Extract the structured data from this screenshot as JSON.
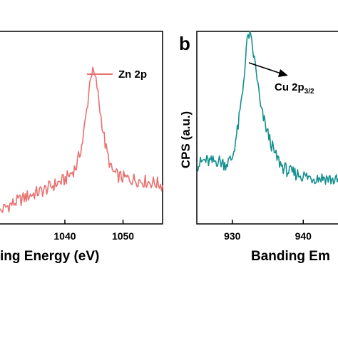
{
  "chart_data": [
    {
      "type": "line",
      "panel_label": "",
      "xlabel": "ing Energy (eV)",
      "ylabel": "",
      "xlim": [
        1028.6,
        1056.8
      ],
      "ylim": [
        0,
        1
      ],
      "xticks": [
        1040,
        1050
      ],
      "legend": {
        "label": "Zn 2p",
        "position": "top-right",
        "color": "#e8716f"
      },
      "series": [
        {
          "name": "Zn 2p",
          "color": "#e8716f",
          "x": [
            1028.6,
            1030,
            1032,
            1034,
            1036,
            1038,
            1040,
            1041,
            1042,
            1043,
            1043.8,
            1044.5,
            1045,
            1045.5,
            1046,
            1047,
            1048,
            1049,
            1050,
            1052,
            1054,
            1056,
            1056.8
          ],
          "y": [
            0.06,
            0.09,
            0.12,
            0.15,
            0.17,
            0.2,
            0.23,
            0.26,
            0.3,
            0.42,
            0.6,
            0.79,
            0.78,
            0.72,
            0.6,
            0.4,
            0.28,
            0.25,
            0.24,
            0.23,
            0.22,
            0.21,
            0.2
          ]
        }
      ]
    },
    {
      "type": "line",
      "panel_label": "b",
      "xlabel": "Banding Em",
      "ylabel": "CPS (a.u.)",
      "xlim": [
        925,
        945.3
      ],
      "ylim": [
        0,
        1
      ],
      "xticks": [
        930,
        940
      ],
      "annotation": {
        "text": "Cu 2p",
        "subscript": "3/2"
      },
      "series": [
        {
          "name": "",
          "color": "#14908f",
          "x": [
            925,
            926,
            927,
            928,
            929,
            930,
            930.8,
            931.5,
            932,
            932.3,
            932.6,
            933,
            933.5,
            934,
            935,
            936,
            937,
            938,
            939,
            940,
            941,
            942,
            943,
            944,
            945.3
          ],
          "y": [
            0.3,
            0.33,
            0.32,
            0.33,
            0.31,
            0.34,
            0.5,
            0.7,
            0.92,
            0.99,
            0.96,
            0.88,
            0.76,
            0.6,
            0.47,
            0.36,
            0.3,
            0.27,
            0.26,
            0.25,
            0.24,
            0.24,
            0.24,
            0.23,
            0.22
          ]
        }
      ]
    }
  ]
}
